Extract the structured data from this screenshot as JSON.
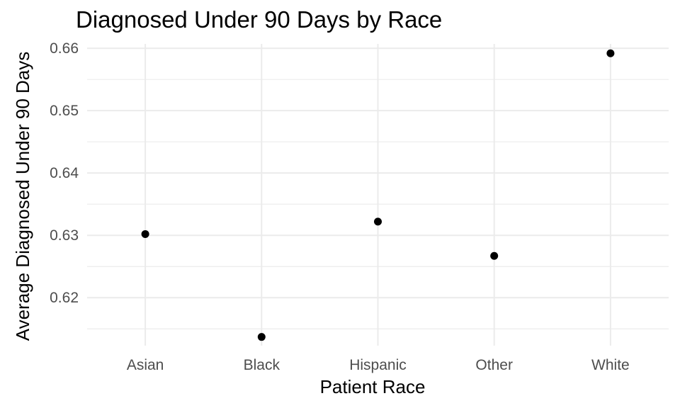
{
  "chart_data": {
    "type": "scatter",
    "title": "Diagnosed Under 90 Days by Race",
    "xlabel": "Patient Race",
    "ylabel": "Average Diagnosed Under 90 Days",
    "categories": [
      "Asian",
      "Black",
      "Hispanic",
      "Other",
      "White"
    ],
    "values": [
      0.6302,
      0.6137,
      0.6322,
      0.6267,
      0.6592
    ],
    "y_ticks": [
      0.62,
      0.63,
      0.64,
      0.65,
      0.66
    ],
    "y_tick_labels": [
      "0.62",
      "0.63",
      "0.64",
      "0.65",
      "0.66"
    ],
    "ylim": [
      0.6123,
      0.6607
    ],
    "grid": true,
    "point_color": "#000000",
    "grid_color": "#ebebeb"
  }
}
